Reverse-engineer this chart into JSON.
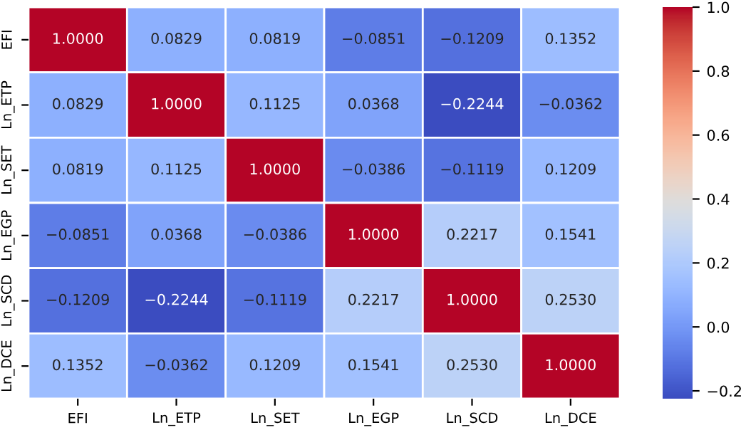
{
  "chart_data": {
    "type": "heatmap",
    "categories": [
      "EFI",
      "Ln_ETP",
      "Ln_SET",
      "Ln_EGP",
      "Ln_SCD",
      "Ln_DCE"
    ],
    "y_categories": [
      "EFI",
      "Ln_ETP",
      "Ln_SET",
      "Ln_EGP",
      "Ln_SCD",
      "Ln_DCE"
    ],
    "cells": [
      [
        1.0,
        0.0829,
        0.0819,
        -0.0851,
        -0.1209,
        0.1352
      ],
      [
        0.0829,
        1.0,
        0.1125,
        0.0368,
        -0.2244,
        -0.0362
      ],
      [
        0.0819,
        0.1125,
        1.0,
        -0.0386,
        -0.1119,
        0.1209
      ],
      [
        -0.0851,
        0.0368,
        -0.0386,
        1.0,
        0.2217,
        0.1541
      ],
      [
        -0.1209,
        -0.2244,
        -0.1119,
        0.2217,
        1.0,
        0.253
      ],
      [
        0.1352,
        -0.0362,
        0.1209,
        0.1541,
        0.253,
        1.0
      ]
    ],
    "cell_labels": [
      [
        "1.0000",
        "0.0829",
        "0.0819",
        "−0.0851",
        "−0.1209",
        "0.1352"
      ],
      [
        "0.0829",
        "1.0000",
        "0.1125",
        "0.0368",
        "−0.2244",
        "−0.0362"
      ],
      [
        "0.0819",
        "0.1125",
        "1.0000",
        "−0.0386",
        "−0.1119",
        "0.1209"
      ],
      [
        "−0.0851",
        "0.0368",
        "−0.0386",
        "1.0000",
        "0.2217",
        "0.1541"
      ],
      [
        "−0.1209",
        "−0.2244",
        "−0.1119",
        "0.2217",
        "1.0000",
        "0.2530"
      ],
      [
        "0.1352",
        "−0.0362",
        "0.1209",
        "0.1541",
        "0.2530",
        "1.0000"
      ]
    ],
    "clim": [
      -0.2244,
      1.0
    ],
    "cticks": [
      {
        "value": -0.2,
        "label": "−0.2"
      },
      {
        "value": 0.0,
        "label": "0.0"
      },
      {
        "value": 0.2,
        "label": "0.2"
      },
      {
        "value": 0.4,
        "label": "0.4"
      },
      {
        "value": 0.6,
        "label": "0.6"
      },
      {
        "value": 0.8,
        "label": "0.8"
      },
      {
        "value": 1.0,
        "label": "1.0"
      }
    ]
  }
}
